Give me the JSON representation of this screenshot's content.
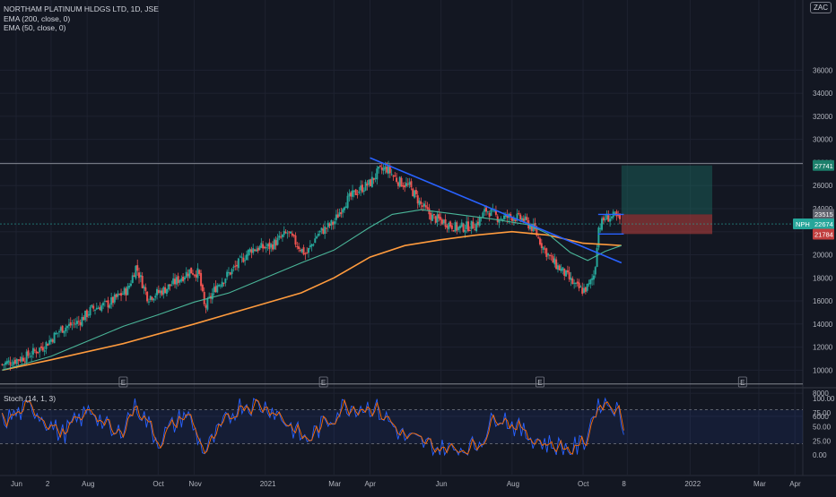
{
  "legend": {
    "symbol": "NORTHAM PLATINUM HLDGS LTD, 1D, JSE",
    "ema200": "EMA (200, close, 0)",
    "ema50": "EMA (50, close, 0)",
    "stoch": "Stoch (14, 1, 3)"
  },
  "currency": "ZAC",
  "colors": {
    "background": "#131722",
    "up": "#26a69a",
    "down": "#ef5350",
    "ema200": "#ff9b3d",
    "ema50": "#4ab598",
    "trendline": "#2962ff",
    "stoch_k": "#2962ff",
    "stoch_d": "#ff6d00",
    "target": "#1b6b62",
    "stop": "#a33a3a"
  },
  "chart_data": [
    {
      "type": "candlestick",
      "title": "NORTHAM PLATINUM HLDGS LTD, 1D, JSE",
      "y_ticks": [
        "36000",
        "34000",
        "32000",
        "30000",
        "28000",
        "26000",
        "24000",
        "22000",
        "20000",
        "18000",
        "16000",
        "14000",
        "12000",
        "10000",
        "8000",
        "6000"
      ],
      "ylim": [
        4600,
        37200
      ],
      "x_ticks": [
        "Jun",
        "2",
        "Aug",
        "Oct",
        "Nov",
        "2021",
        "Mar",
        "Apr",
        "Jun",
        "Aug",
        "Oct",
        "8",
        "2022",
        "Mar",
        "Apr"
      ],
      "price_path": [
        [
          "2020-05-20",
          10500
        ],
        [
          "2020-06-10",
          11200
        ],
        [
          "2020-06-25",
          12100
        ],
        [
          "2020-07-10",
          13600
        ],
        [
          "2020-07-25",
          14200
        ],
        [
          "2020-08-05",
          15300
        ],
        [
          "2020-08-20",
          15800
        ],
        [
          "2020-09-05",
          17000
        ],
        [
          "2020-09-12",
          19000
        ],
        [
          "2020-09-22",
          16300
        ],
        [
          "2020-10-05",
          16900
        ],
        [
          "2020-10-15",
          17600
        ],
        [
          "2020-10-28",
          18600
        ],
        [
          "2020-11-05",
          18400
        ],
        [
          "2020-11-10",
          15300
        ],
        [
          "2020-11-20",
          17300
        ],
        [
          "2020-12-05",
          18800
        ],
        [
          "2020-12-20",
          20500
        ],
        [
          "2021-01-05",
          20700
        ],
        [
          "2021-01-20",
          21900
        ],
        [
          "2021-02-05",
          20000
        ],
        [
          "2021-02-15",
          21800
        ],
        [
          "2021-03-01",
          22800
        ],
        [
          "2021-03-10",
          24500
        ],
        [
          "2021-03-22",
          25600
        ],
        [
          "2021-04-01",
          26200
        ],
        [
          "2021-04-08",
          27200
        ],
        [
          "2021-04-15",
          27500
        ],
        [
          "2021-04-25",
          26400
        ],
        [
          "2021-05-05",
          25900
        ],
        [
          "2021-05-15",
          24300
        ],
        [
          "2021-05-25",
          23200
        ],
        [
          "2021-06-05",
          22800
        ],
        [
          "2021-06-15",
          22300
        ],
        [
          "2021-07-01",
          22600
        ],
        [
          "2021-07-10",
          23900
        ],
        [
          "2021-07-20",
          23200
        ],
        [
          "2021-08-01",
          23300
        ],
        [
          "2021-08-10",
          23100
        ],
        [
          "2021-08-20",
          22200
        ],
        [
          "2021-08-28",
          20600
        ],
        [
          "2021-09-05",
          19400
        ],
        [
          "2021-09-15",
          18400
        ],
        [
          "2021-09-25",
          17200
        ],
        [
          "2021-10-01",
          16900
        ],
        [
          "2021-10-06",
          17300
        ],
        [
          "2021-10-11",
          18400
        ],
        [
          "2021-10-14",
          22300
        ],
        [
          "2021-10-20",
          23200
        ],
        [
          "2021-10-28",
          23300
        ],
        [
          "2021-11-03",
          22900
        ]
      ],
      "ema50_path": [
        [
          "2020-05-20",
          10000
        ],
        [
          "2020-07-01",
          11200
        ],
        [
          "2020-08-01",
          12500
        ],
        [
          "2020-09-01",
          13800
        ],
        [
          "2020-10-01",
          14800
        ],
        [
          "2020-11-01",
          15900
        ],
        [
          "2020-12-01",
          16700
        ],
        [
          "2021-01-01",
          18000
        ],
        [
          "2021-02-01",
          19300
        ],
        [
          "2021-03-01",
          20400
        ],
        [
          "2021-04-01",
          22400
        ],
        [
          "2021-04-20",
          23500
        ],
        [
          "2021-05-15",
          23900
        ],
        [
          "2021-06-15",
          23500
        ],
        [
          "2021-07-15",
          23100
        ],
        [
          "2021-08-15",
          22600
        ],
        [
          "2021-09-01",
          21800
        ],
        [
          "2021-09-20",
          20200
        ],
        [
          "2021-10-05",
          19500
        ],
        [
          "2021-10-20",
          20300
        ],
        [
          "2021-11-03",
          20800
        ]
      ],
      "ema200_path": [
        [
          "2020-05-20",
          10000
        ],
        [
          "2020-07-01",
          10900
        ],
        [
          "2020-09-01",
          12300
        ],
        [
          "2020-11-01",
          14000
        ],
        [
          "2020-12-15",
          15300
        ],
        [
          "2021-02-01",
          16700
        ],
        [
          "2021-03-01",
          18000
        ],
        [
          "2021-04-01",
          19800
        ],
        [
          "2021-05-01",
          20800
        ],
        [
          "2021-06-01",
          21300
        ],
        [
          "2021-07-01",
          21700
        ],
        [
          "2021-08-01",
          22000
        ],
        [
          "2021-09-01",
          21700
        ],
        [
          "2021-10-01",
          21000
        ],
        [
          "2021-11-03",
          20800
        ]
      ],
      "trendline": [
        [
          "2021-04-01",
          28400
        ],
        [
          "2021-11-03",
          19300
        ]
      ],
      "horizontal_levels": [
        27900,
        8800
      ],
      "channel": {
        "top": 23500,
        "bottom": 21800,
        "from": "2021-10-14",
        "to": "2021-11-05"
      },
      "long_position": {
        "entry": 23500,
        "target": 27741,
        "stop": 21800,
        "from": "2021-11-03",
        "to": "2022-01-20"
      },
      "price_labels": [
        {
          "text": "27741",
          "value": 27741,
          "color": "#1b7f6b"
        },
        {
          "text": "23515",
          "value": 23515,
          "color": "#5d606b"
        },
        {
          "text": "NPH",
          "value": 22674,
          "color": "#26a69a"
        },
        {
          "text": "22674",
          "value": 22674,
          "color": "#26a69a"
        },
        {
          "text": "21784",
          "value": 21784,
          "color": "#c13f3f"
        }
      ],
      "event_markers": [
        "E",
        "E",
        "E",
        "E"
      ],
      "event_dates": [
        "2020-09-01",
        "2021-02-20",
        "2021-08-25",
        "2022-02-15"
      ],
      "last_close": 22674
    },
    {
      "type": "line",
      "title": "Stoch (14, 1, 3)",
      "y_ticks": [
        "100.00",
        "75.00",
        "50.00",
        "25.00",
        "0.00"
      ],
      "ylim": [
        -5,
        105
      ],
      "levels": [
        80,
        20
      ],
      "stoch_path": [
        [
          "2020-05-20",
          60
        ],
        [
          "2020-06-15",
          85
        ],
        [
          "2020-07-10",
          35
        ],
        [
          "2020-08-05",
          82
        ],
        [
          "2020-08-25",
          30
        ],
        [
          "2020-09-12",
          90
        ],
        [
          "2020-10-01",
          25
        ],
        [
          "2020-10-25",
          75
        ],
        [
          "2020-11-10",
          5
        ],
        [
          "2020-12-10",
          92
        ],
        [
          "2021-01-05",
          85
        ],
        [
          "2021-02-05",
          25
        ],
        [
          "2021-03-10",
          88
        ],
        [
          "2021-04-05",
          85
        ],
        [
          "2021-05-01",
          30
        ],
        [
          "2021-06-05",
          8
        ],
        [
          "2021-07-01",
          15
        ],
        [
          "2021-07-20",
          75
        ],
        [
          "2021-08-10",
          40
        ],
        [
          "2021-08-30",
          20
        ],
        [
          "2021-09-20",
          10
        ],
        [
          "2021-10-01",
          18
        ],
        [
          "2021-10-14",
          96
        ],
        [
          "2021-10-28",
          88
        ],
        [
          "2021-11-05",
          50
        ]
      ]
    }
  ]
}
